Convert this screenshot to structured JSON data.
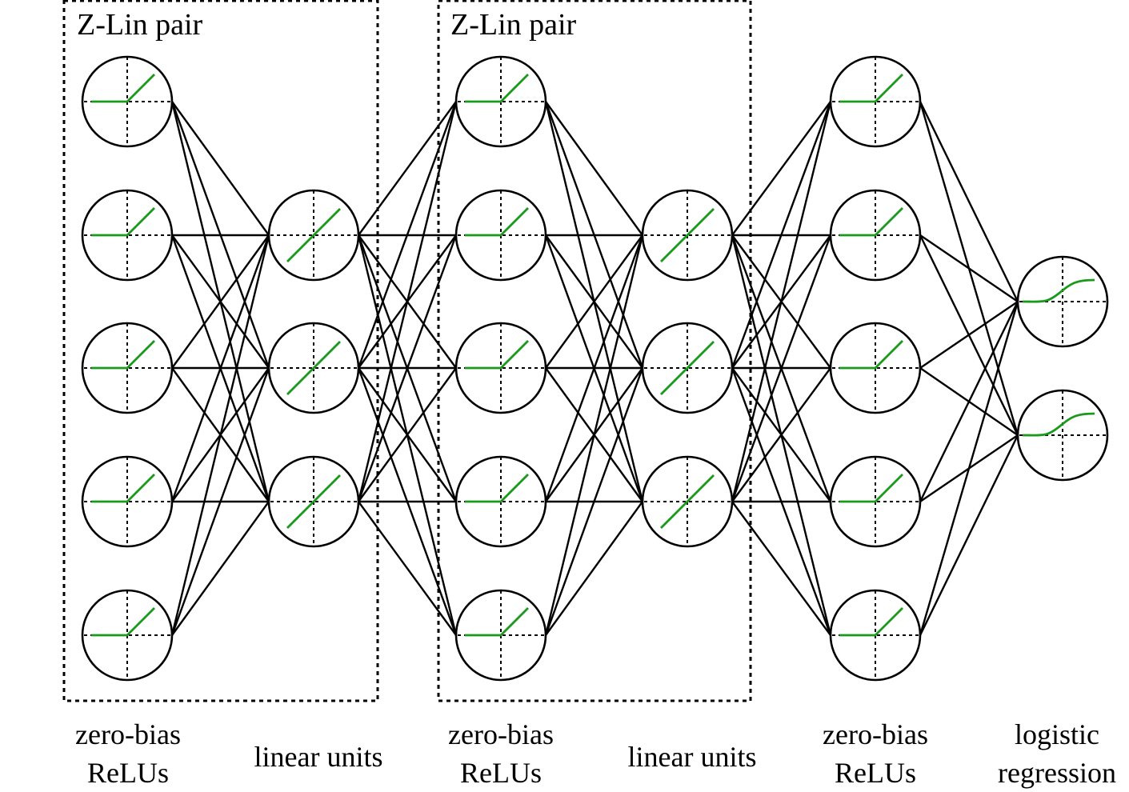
{
  "groups": [
    {
      "title": "Z-Lin pair"
    },
    {
      "title": "Z-Lin pair"
    }
  ],
  "layers": [
    {
      "type": "relu",
      "units": 5,
      "label_line1": "zero-bias",
      "label_line2": "ReLUs"
    },
    {
      "type": "linear",
      "units": 3,
      "label_line1": "linear units",
      "label_line2": ""
    },
    {
      "type": "relu",
      "units": 5,
      "label_line1": "zero-bias",
      "label_line2": "ReLUs"
    },
    {
      "type": "linear",
      "units": 3,
      "label_line1": "linear units",
      "label_line2": ""
    },
    {
      "type": "relu",
      "units": 5,
      "label_line1": "zero-bias",
      "label_line2": "ReLUs"
    },
    {
      "type": "logistic",
      "units": 2,
      "label_line1": "logistic",
      "label_line2": "regression"
    }
  ],
  "colors": {
    "activation_curve": "#1a9a1a",
    "lines": "#000000"
  }
}
